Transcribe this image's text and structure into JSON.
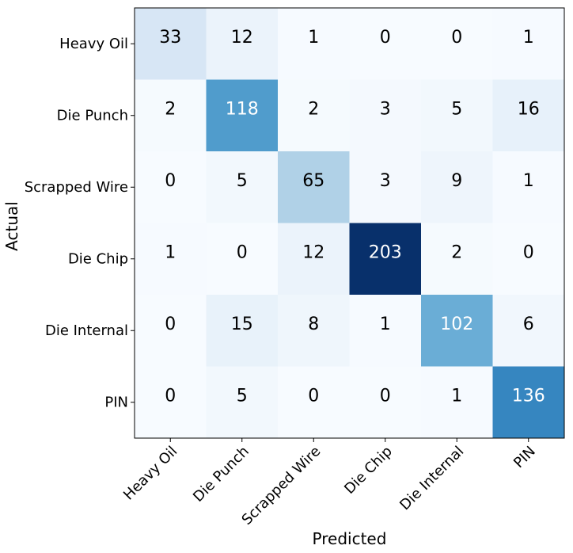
{
  "chart_data": {
    "type": "heatmap",
    "title": "",
    "xlabel": "Predicted",
    "ylabel": "Actual",
    "x_categories": [
      "Heavy Oil",
      "Die Punch",
      "Scrapped Wire",
      "Die Chip",
      "Die Internal",
      "PIN"
    ],
    "y_categories": [
      "Heavy Oil",
      "Die Punch",
      "Scrapped Wire",
      "Die Chip",
      "Die Internal",
      "PIN"
    ],
    "values": [
      [
        33,
        12,
        1,
        0,
        0,
        1
      ],
      [
        2,
        118,
        2,
        3,
        5,
        16
      ],
      [
        0,
        5,
        65,
        3,
        9,
        1
      ],
      [
        1,
        0,
        12,
        203,
        2,
        0
      ],
      [
        0,
        15,
        8,
        1,
        102,
        6
      ],
      [
        0,
        5,
        0,
        0,
        1,
        136
      ]
    ],
    "colormap": "Blues",
    "vmin": 0,
    "vmax": 203,
    "legend": "none",
    "grid": false
  }
}
